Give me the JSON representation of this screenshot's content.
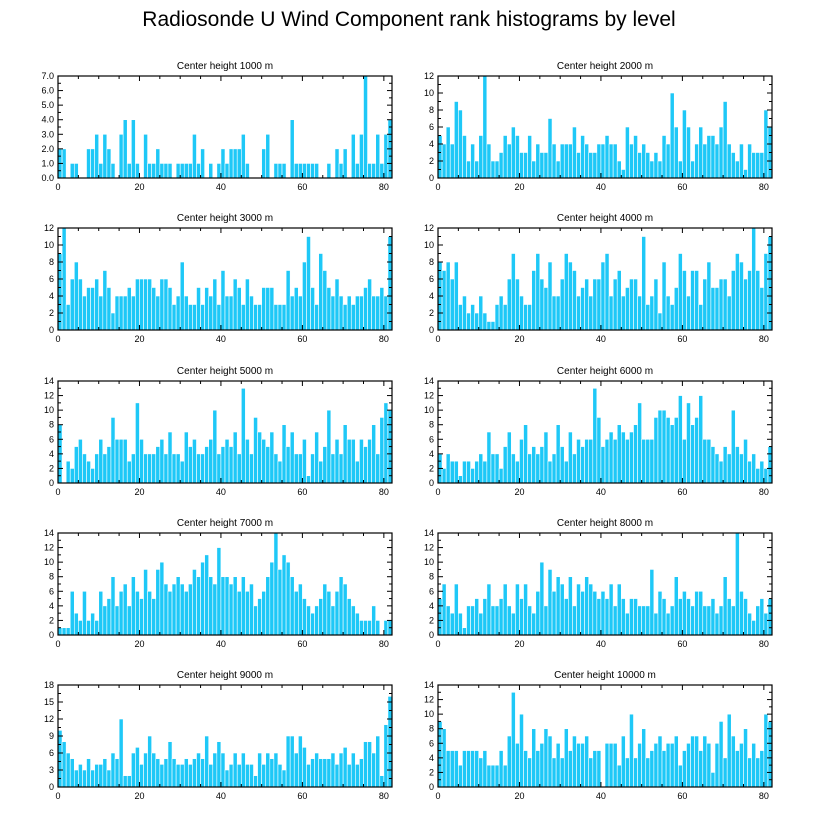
{
  "title": "Radiosonde U Wind Component rank histograms by level",
  "colors": {
    "bar": "#1ec8f7",
    "bar_edge": "#ffffff",
    "axis": "#000000"
  },
  "chart_data": [
    {
      "type": "bar",
      "title": "Center height 1000 m",
      "xlim": [
        0,
        82
      ],
      "x_ticks": [
        0,
        20,
        40,
        60,
        80
      ],
      "ylim": [
        0,
        7
      ],
      "y_ticks": [
        "0.0",
        "1.0",
        "2.0",
        "3.0",
        "4.0",
        "5.0",
        "6.0",
        "7.0"
      ],
      "values": [
        2,
        2,
        0,
        1,
        1,
        0,
        0,
        2,
        2,
        3,
        1,
        3,
        2,
        1,
        0,
        3,
        4,
        1,
        4,
        1,
        0,
        3,
        1,
        1,
        2,
        1,
        1,
        1,
        0,
        1,
        1,
        1,
        1,
        3,
        1,
        2,
        0,
        1,
        0,
        1,
        2,
        1,
        2,
        2,
        2,
        3,
        1,
        0,
        0,
        0,
        2,
        3,
        0,
        1,
        1,
        1,
        0,
        4,
        1,
        1,
        1,
        1,
        1,
        1,
        0,
        0,
        1,
        0,
        2,
        1,
        2,
        0,
        3,
        1,
        3,
        7,
        1,
        1,
        3,
        1,
        3,
        4
      ]
    },
    {
      "type": "bar",
      "title": "Center height 2000 m",
      "xlim": [
        0,
        82
      ],
      "x_ticks": [
        0,
        20,
        40,
        60,
        80
      ],
      "ylim": [
        0,
        12
      ],
      "y_ticks": [
        "0",
        "2",
        "4",
        "6",
        "8",
        "10",
        "12"
      ],
      "values": [
        5,
        4,
        6,
        4,
        9,
        8,
        5,
        2,
        4,
        2,
        5,
        12,
        4,
        2,
        2,
        3,
        5,
        4,
        6,
        5,
        3,
        3,
        5,
        2,
        4,
        3,
        3,
        7,
        4,
        2,
        4,
        4,
        4,
        6,
        3,
        5,
        4,
        3,
        3,
        4,
        4,
        5,
        4,
        4,
        2,
        1,
        6,
        4,
        5,
        3,
        4,
        3,
        2,
        3,
        2,
        5,
        4,
        10,
        6,
        2,
        8,
        6,
        2,
        4,
        6,
        4,
        5,
        5,
        4,
        6,
        9,
        4,
        3,
        2,
        4,
        1,
        4,
        3,
        3,
        3,
        8,
        6
      ]
    },
    {
      "type": "bar",
      "title": "Center height 3000 m",
      "xlim": [
        0,
        82
      ],
      "x_ticks": [
        0,
        20,
        40,
        60,
        80
      ],
      "ylim": [
        0,
        12
      ],
      "y_ticks": [
        "0",
        "2",
        "4",
        "6",
        "8",
        "10",
        "12"
      ],
      "values": [
        9,
        12,
        3,
        6,
        8,
        6,
        4,
        5,
        5,
        6,
        4,
        7,
        5,
        2,
        4,
        4,
        4,
        5,
        4,
        6,
        6,
        6,
        6,
        5,
        4,
        6,
        6,
        5,
        3,
        4,
        8,
        4,
        3,
        3,
        5,
        3,
        5,
        4,
        6,
        3,
        7,
        4,
        4,
        6,
        5,
        3,
        6,
        4,
        3,
        3,
        5,
        5,
        5,
        3,
        3,
        3,
        7,
        4,
        5,
        4,
        8,
        11,
        5,
        3,
        9,
        7,
        5,
        4,
        6,
        4,
        3,
        4,
        3,
        4,
        4,
        5,
        6,
        4,
        4,
        5,
        4,
        11
      ]
    },
    {
      "type": "bar",
      "title": "Center height 4000 m",
      "xlim": [
        0,
        82
      ],
      "x_ticks": [
        0,
        20,
        40,
        60,
        80
      ],
      "ylim": [
        0,
        12
      ],
      "y_ticks": [
        "0",
        "2",
        "4",
        "6",
        "8",
        "10",
        "12"
      ],
      "values": [
        8,
        7,
        8,
        6,
        8,
        3,
        4,
        2,
        3,
        2,
        4,
        2,
        1,
        1,
        3,
        4,
        3,
        6,
        9,
        6,
        4,
        3,
        3,
        7,
        9,
        6,
        5,
        8,
        4,
        4,
        6,
        9,
        8,
        7,
        4,
        5,
        6,
        4,
        6,
        6,
        8,
        9,
        4,
        6,
        7,
        4,
        5,
        6,
        6,
        4,
        11,
        3,
        4,
        6,
        2,
        8,
        4,
        3,
        5,
        9,
        7,
        4,
        7,
        7,
        3,
        6,
        8,
        5,
        5,
        6,
        6,
        4,
        7,
        9,
        8,
        6,
        7,
        12,
        7,
        5,
        9,
        11
      ]
    },
    {
      "type": "bar",
      "title": "Center height 5000 m",
      "xlim": [
        0,
        82
      ],
      "x_ticks": [
        0,
        20,
        40,
        60,
        80
      ],
      "ylim": [
        0,
        14
      ],
      "y_ticks": [
        "0",
        "2",
        "4",
        "6",
        "8",
        "10",
        "12",
        "14"
      ],
      "values": [
        8,
        0,
        3,
        2,
        5,
        6,
        4,
        3,
        2,
        4,
        6,
        4,
        5,
        9,
        6,
        6,
        6,
        3,
        4,
        11,
        6,
        4,
        4,
        4,
        5,
        6,
        4,
        7,
        4,
        4,
        3,
        7,
        5,
        6,
        4,
        4,
        5,
        6,
        10,
        4,
        5,
        6,
        5,
        7,
        4,
        13,
        6,
        4,
        9,
        7,
        6,
        5,
        7,
        4,
        3,
        8,
        5,
        7,
        4,
        4,
        6,
        1,
        4,
        7,
        3,
        5,
        10,
        4,
        6,
        4,
        8,
        6,
        6,
        3,
        6,
        5,
        6,
        8,
        4,
        9,
        11,
        10
      ]
    },
    {
      "type": "bar",
      "title": "Center height 6000 m",
      "xlim": [
        0,
        82
      ],
      "x_ticks": [
        0,
        20,
        40,
        60,
        80
      ],
      "ylim": [
        0,
        14
      ],
      "y_ticks": [
        "0",
        "2",
        "4",
        "6",
        "8",
        "10",
        "12",
        "14"
      ],
      "values": [
        4,
        2,
        4,
        3,
        3,
        1,
        3,
        3,
        2,
        3,
        4,
        3,
        7,
        4,
        4,
        2,
        5,
        7,
        4,
        3,
        6,
        8,
        4,
        5,
        4,
        5,
        7,
        3,
        4,
        8,
        5,
        3,
        7,
        4,
        6,
        5,
        6,
        6,
        13,
        9,
        5,
        6,
        7,
        6,
        8,
        7,
        6,
        7,
        8,
        11,
        6,
        6,
        6,
        9,
        10,
        10,
        9,
        8,
        9,
        12,
        6,
        11,
        8,
        9,
        12,
        6,
        6,
        5,
        4,
        3,
        5,
        4,
        10,
        5,
        4,
        6,
        3,
        4,
        2,
        3,
        2,
        5
      ]
    },
    {
      "type": "bar",
      "title": "Center height 7000 m",
      "xlim": [
        0,
        82
      ],
      "x_ticks": [
        0,
        20,
        40,
        60,
        80
      ],
      "ylim": [
        0,
        14
      ],
      "y_ticks": [
        "0",
        "2",
        "4",
        "6",
        "8",
        "10",
        "12",
        "14"
      ],
      "values": [
        1,
        1,
        1,
        6,
        3,
        2,
        6,
        2,
        3,
        2,
        6,
        4,
        5,
        8,
        4,
        6,
        7,
        4,
        8,
        6,
        5,
        9,
        6,
        5,
        9,
        10,
        7,
        6,
        7,
        8,
        7,
        6,
        7,
        9,
        8,
        10,
        11,
        8,
        7,
        12,
        8,
        8,
        7,
        8,
        6,
        8,
        6,
        7,
        4,
        5,
        6,
        8,
        10,
        14,
        9,
        11,
        10,
        8,
        6,
        7,
        5,
        4,
        3,
        4,
        5,
        7,
        6,
        4,
        6,
        8,
        7,
        5,
        4,
        3,
        2,
        2,
        2,
        4,
        2,
        0,
        2,
        2
      ]
    },
    {
      "type": "bar",
      "title": "Center height 8000 m",
      "xlim": [
        0,
        82
      ],
      "x_ticks": [
        0,
        20,
        40,
        60,
        80
      ],
      "ylim": [
        0,
        14
      ],
      "y_ticks": [
        "0",
        "2",
        "4",
        "6",
        "8",
        "10",
        "12",
        "14"
      ],
      "values": [
        5,
        7,
        4,
        3,
        7,
        3,
        1,
        4,
        4,
        5,
        3,
        5,
        7,
        4,
        4,
        5,
        7,
        4,
        3,
        7,
        5,
        7,
        4,
        3,
        6,
        10,
        4,
        9,
        6,
        8,
        7,
        5,
        8,
        4,
        7,
        6,
        8,
        7,
        6,
        5,
        6,
        5,
        7,
        4,
        7,
        5,
        3,
        5,
        5,
        4,
        4,
        4,
        9,
        3,
        6,
        5,
        3,
        4,
        8,
        5,
        6,
        5,
        4,
        6,
        6,
        4,
        4,
        5,
        3,
        4,
        8,
        5,
        4,
        14,
        6,
        5,
        3,
        2,
        4,
        5,
        3,
        5
      ]
    },
    {
      "type": "bar",
      "title": "Center height 9000 m",
      "xlim": [
        0,
        82
      ],
      "x_ticks": [
        0,
        20,
        40,
        60,
        80
      ],
      "ylim": [
        0,
        18
      ],
      "y_ticks": [
        "0",
        "3",
        "6",
        "9",
        "12",
        "15",
        "18"
      ],
      "values": [
        10,
        8,
        6,
        5,
        3,
        4,
        3,
        5,
        3,
        4,
        4,
        5,
        3,
        6,
        5,
        12,
        2,
        2,
        6,
        7,
        4,
        6,
        9,
        6,
        5,
        4,
        5,
        8,
        5,
        4,
        4,
        5,
        4,
        5,
        6,
        5,
        9,
        4,
        6,
        8,
        6,
        3,
        4,
        6,
        4,
        6,
        4,
        4,
        2,
        6,
        4,
        6,
        5,
        6,
        4,
        3,
        9,
        9,
        6,
        9,
        7,
        4,
        5,
        6,
        5,
        5,
        5,
        6,
        4,
        6,
        7,
        4,
        6,
        4,
        5,
        8,
        8,
        6,
        9,
        2,
        11,
        16
      ]
    },
    {
      "type": "bar",
      "title": "Center height 10000 m",
      "xlim": [
        0,
        82
      ],
      "x_ticks": [
        0,
        20,
        40,
        60,
        80
      ],
      "ylim": [
        0,
        14
      ],
      "y_ticks": [
        "0",
        "2",
        "4",
        "6",
        "8",
        "10",
        "12",
        "14"
      ],
      "values": [
        9,
        8,
        5,
        5,
        5,
        3,
        5,
        5,
        5,
        5,
        4,
        5,
        3,
        3,
        3,
        5,
        3,
        7,
        13,
        6,
        10,
        5,
        4,
        8,
        5,
        6,
        8,
        7,
        4,
        6,
        4,
        8,
        5,
        7,
        6,
        6,
        7,
        4,
        5,
        5,
        0,
        6,
        6,
        6,
        3,
        7,
        4,
        10,
        4,
        6,
        8,
        4,
        5,
        6,
        7,
        5,
        6,
        6,
        7,
        3,
        5,
        6,
        7,
        7,
        5,
        7,
        6,
        2,
        6,
        9,
        4,
        10,
        7,
        5,
        6,
        8,
        4,
        6,
        4,
        5,
        10,
        9
      ]
    }
  ]
}
